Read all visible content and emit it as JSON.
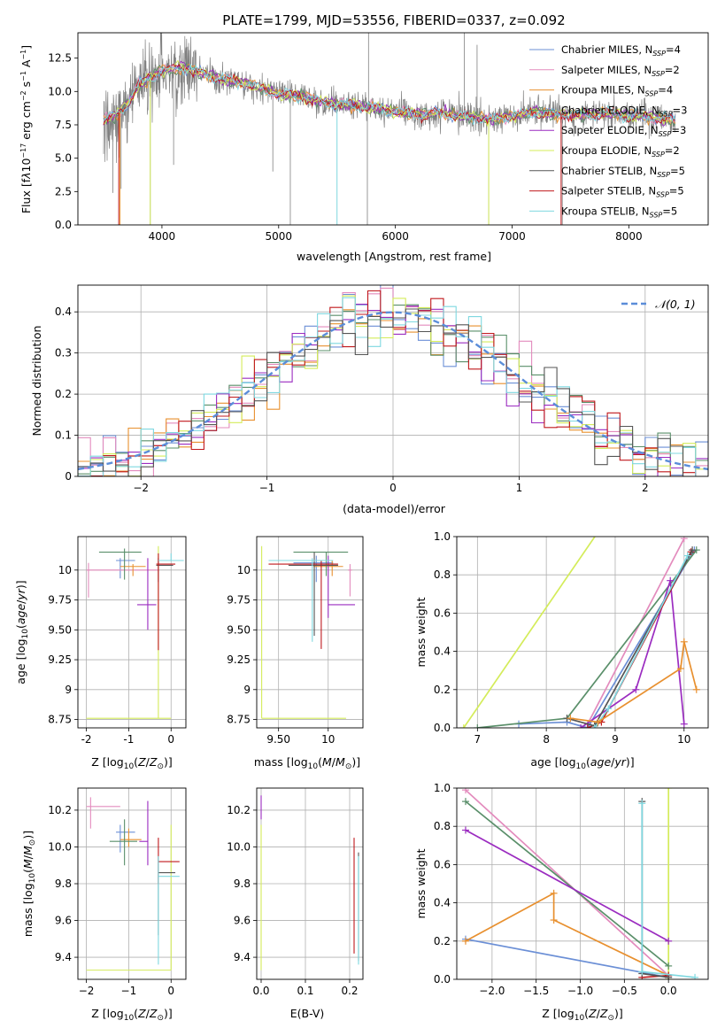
{
  "title": "PLATE=1799, MJD=53556, FIBERID=0337, z=0.092",
  "colors": {
    "chabrier_miles": "#6b8fd6",
    "salpeter_miles": "#e38bbd",
    "kroupa_miles": "#e8902f",
    "chabrier_elodie": "#5a8f6a",
    "salpeter_elodie": "#9b2cc0",
    "kroupa_elodie": "#d4ec5a",
    "chabrier_stelib": "#555555",
    "salpeter_stelib": "#c0181c",
    "kroupa_stelib": "#7fd8e0",
    "data": "#808080",
    "normal": "#5b8dd9"
  },
  "chart_data": [
    {
      "id": "spectrum",
      "type": "line",
      "xlabel": "wavelength [Angstrom, rest frame]",
      "ylabel_html": "Flux [f<tspan font-style='italic'>λ</tspan>10<tspan dy='-5' font-size='8'>−17</tspan><tspan dy='5'> erg cm</tspan><tspan dy='-5' font-size='8'>−2</tspan><tspan dy='5'> s</tspan><tspan dy='-5' font-size='8'>−1</tspan><tspan dy='5'> A</tspan><tspan dy='-5' font-size='8'>−1</tspan><tspan dy='5'>]</tspan>",
      "xlim": [
        3280,
        8680
      ],
      "ylim": [
        0,
        14.4
      ],
      "xticks": [
        4000,
        5000,
        6000,
        7000,
        8000
      ],
      "yticks": [
        0.0,
        2.5,
        5.0,
        7.5,
        10.0,
        12.5
      ],
      "legend": [
        "Chabrier MILES, N_SSP=4",
        "Salpeter MILES, N_SSP=2",
        "Kroupa MILES, N_SSP=4",
        "Chabrier ELODIE, N_SSP=3",
        "Salpeter ELODIE, N_SSP=3",
        "Kroupa ELODIE, N_SSP=2",
        "Chabrier STELIB, N_SSP=5",
        "Salpeter STELIB, N_SSP=5",
        "Kroupa STELIB, N_SSP=5"
      ],
      "legend_placement": "top-right",
      "continuum": [
        [
          3500,
          7.8
        ],
        [
          3600,
          8.2
        ],
        [
          3700,
          9.0
        ],
        [
          3800,
          10.5
        ],
        [
          3900,
          11.0
        ],
        [
          4000,
          11.6
        ],
        [
          4200,
          11.8
        ],
        [
          4400,
          11.2
        ],
        [
          4600,
          10.8
        ],
        [
          4800,
          10.4
        ],
        [
          5000,
          9.8
        ],
        [
          5200,
          9.6
        ],
        [
          5400,
          9.2
        ],
        [
          5600,
          9.0
        ],
        [
          5800,
          8.8
        ],
        [
          6000,
          8.5
        ],
        [
          6200,
          8.3
        ],
        [
          6400,
          8.4
        ],
        [
          6600,
          8.1
        ],
        [
          6800,
          7.9
        ],
        [
          7000,
          8.2
        ],
        [
          7200,
          8.5
        ],
        [
          7400,
          8.3
        ],
        [
          7600,
          8.2
        ],
        [
          7800,
          8.4
        ],
        [
          8000,
          8.2
        ],
        [
          8200,
          8.1
        ],
        [
          8400,
          7.8
        ]
      ]
    },
    {
      "id": "residuals",
      "type": "histogram",
      "xlabel": "(data-model)/error",
      "ylabel": "Normed distribution",
      "xlim": [
        -2.5,
        2.5
      ],
      "ylim": [
        0,
        0.465
      ],
      "xticks": [
        -2,
        -1,
        0,
        1,
        2
      ],
      "yticks": [
        0.0,
        0.1,
        0.2,
        0.3,
        0.4
      ],
      "bin_width": 0.1,
      "legend": [
        "N(0,1)"
      ],
      "legend_placement": "top-right",
      "grid": true
    },
    {
      "id": "age_vs_Z",
      "type": "errorbar",
      "xlabel": "Z [log10(Z/Z_sun)]",
      "ylabel": "age [log10(age/yr)]",
      "xlim": [
        -2.2,
        0.35
      ],
      "ylim": [
        8.68,
        10.28
      ],
      "xticks": [
        -2,
        -1,
        0
      ],
      "yticks": [
        8.75,
        9.0,
        9.25,
        9.5,
        9.75,
        10.0
      ],
      "grid": true,
      "points": [
        {
          "c": "chabrier_miles",
          "x": -1.2,
          "y": 10.08,
          "xe": [
            -1.3,
            -0.85
          ],
          "ye": [
            9.93,
            10.1
          ]
        },
        {
          "c": "salpeter_miles",
          "x": -1.95,
          "y": 10.0,
          "xe": [
            -2.0,
            -0.3
          ],
          "ye": [
            9.77,
            10.06
          ]
        },
        {
          "c": "kroupa_miles",
          "x": -0.9,
          "y": 10.03,
          "xe": [
            -1.2,
            -0.6
          ],
          "ye": [
            9.95,
            10.05
          ]
        },
        {
          "c": "chabrier_elodie",
          "x": -1.1,
          "y": 10.15,
          "xe": [
            -1.7,
            -0.7
          ],
          "ye": [
            9.92,
            10.18
          ]
        },
        {
          "c": "salpeter_elodie",
          "x": -0.55,
          "y": 9.71,
          "xe": [
            -0.8,
            -0.35
          ],
          "ye": [
            9.5,
            10.1
          ]
        },
        {
          "c": "kroupa_elodie",
          "x": -0.3,
          "y": 8.76,
          "xe": [
            -2.0,
            0.0
          ],
          "ye": [
            8.76,
            10.2
          ]
        },
        {
          "c": "chabrier_stelib",
          "x": -0.3,
          "y": 10.04,
          "xe": [
            -0.35,
            0.05
          ],
          "ye": [
            9.9,
            10.1
          ]
        },
        {
          "c": "salpeter_stelib",
          "x": -0.3,
          "y": 10.05,
          "xe": [
            -0.35,
            0.1
          ],
          "ye": [
            9.33,
            10.14
          ]
        },
        {
          "c": "kroupa_stelib",
          "x": 0.0,
          "y": 10.08,
          "xe": [
            -0.3,
            0.3
          ],
          "ye": [
            10.08,
            10.14
          ]
        }
      ]
    },
    {
      "id": "age_vs_mass",
      "type": "errorbar",
      "xlabel": "mass [log10(M/M_sun)]",
      "ylabel": "",
      "xlim": [
        9.28,
        10.35
      ],
      "ylim": [
        8.68,
        10.28
      ],
      "xticks": [
        9.5,
        10.0
      ],
      "yticks": [
        8.75,
        9.0,
        9.25,
        9.5,
        9.75,
        10.0
      ],
      "grid": true,
      "points": [
        {
          "c": "chabrier_miles",
          "x": 9.88,
          "y": 10.06,
          "xe": [
            9.65,
            10.05
          ],
          "ye": [
            9.9,
            10.12
          ]
        },
        {
          "c": "salpeter_miles",
          "x": 10.22,
          "y": 10.0,
          "xe": [
            10.2,
            10.24
          ],
          "ye": [
            9.78,
            10.05
          ]
        },
        {
          "c": "kroupa_miles",
          "x": 10.04,
          "y": 10.03,
          "xe": [
            9.85,
            10.15
          ],
          "ye": [
            9.95,
            10.08
          ]
        },
        {
          "c": "chabrier_elodie",
          "x": 9.98,
          "y": 10.15,
          "xe": [
            9.65,
            10.2
          ],
          "ye": [
            9.95,
            10.15
          ]
        },
        {
          "c": "salpeter_elodie",
          "x": 10.0,
          "y": 9.71,
          "xe": [
            10.0,
            10.27
          ],
          "ye": [
            9.6,
            10.12
          ]
        },
        {
          "c": "kroupa_elodie",
          "x": 9.33,
          "y": 8.76,
          "xe": [
            9.33,
            10.18
          ],
          "ye": [
            8.76,
            10.2
          ]
        },
        {
          "c": "chabrier_stelib",
          "x": 9.86,
          "y": 10.04,
          "xe": [
            9.6,
            10.1
          ],
          "ye": [
            9.45,
            10.15
          ]
        },
        {
          "c": "salpeter_stelib",
          "x": 9.93,
          "y": 10.05,
          "xe": [
            9.4,
            10.1
          ],
          "ye": [
            9.34,
            10.08
          ]
        },
        {
          "c": "kroupa_stelib",
          "x": 9.84,
          "y": 10.08,
          "xe": [
            9.4,
            10.05
          ],
          "ye": [
            9.4,
            10.1
          ]
        }
      ]
    },
    {
      "id": "weight_vs_age",
      "type": "line",
      "xlabel": "age [log10(age/yr)]",
      "ylabel": "mass weight",
      "xlim": [
        6.7,
        10.35
      ],
      "ylim": [
        0,
        1.0
      ],
      "xticks": [
        7,
        8,
        9,
        10
      ],
      "yticks": [
        0.0,
        0.2,
        0.4,
        0.6,
        0.8,
        1.0
      ],
      "grid": true,
      "series": [
        {
          "c": "kroupa_elodie",
          "pts": [
            [
              6.8,
              0.0
            ],
            [
              8.8,
              1.05
            ]
          ]
        },
        {
          "c": "salpeter_miles",
          "pts": [
            [
              8.6,
              0.02
            ],
            [
              10.0,
              0.99
            ]
          ]
        },
        {
          "c": "chabrier_miles",
          "pts": [
            [
              7.6,
              0.02
            ],
            [
              8.3,
              0.03
            ],
            [
              8.6,
              0.0
            ],
            [
              10.15,
              0.93
            ]
          ]
        },
        {
          "c": "chabrier_elodie",
          "pts": [
            [
              7.0,
              0.0
            ],
            [
              8.3,
              0.05
            ],
            [
              10.18,
              0.93
            ]
          ]
        },
        {
          "c": "salpeter_elodie",
          "pts": [
            [
              8.5,
              0.0
            ],
            [
              9.3,
              0.2
            ],
            [
              9.8,
              0.77
            ],
            [
              10.0,
              0.02
            ]
          ]
        },
        {
          "c": "salpeter_stelib",
          "pts": [
            [
              8.6,
              0.0
            ],
            [
              8.8,
              0.03
            ],
            [
              10.1,
              0.92
            ]
          ]
        },
        {
          "c": "chabrier_stelib",
          "pts": [
            [
              8.3,
              0.05
            ],
            [
              8.7,
              0.01
            ],
            [
              10.12,
              0.93
            ]
          ]
        },
        {
          "c": "kroupa_stelib",
          "pts": [
            [
              8.7,
              0.0
            ],
            [
              8.9,
              0.1
            ],
            [
              10.05,
              0.9
            ]
          ]
        },
        {
          "c": "kroupa_miles",
          "pts": [
            [
              8.35,
              0.05
            ],
            [
              8.75,
              0.03
            ],
            [
              9.95,
              0.31
            ],
            [
              10.0,
              0.45
            ],
            [
              10.18,
              0.2
            ]
          ]
        }
      ]
    },
    {
      "id": "mass_vs_Z",
      "type": "errorbar",
      "xlabel": "Z [log10(Z/Z_sun)]",
      "ylabel": "mass [log10(M/M_sun)]",
      "xlim": [
        -2.2,
        0.35
      ],
      "ylim": [
        9.28,
        10.32
      ],
      "xticks": [
        -2,
        -1,
        0
      ],
      "yticks": [
        9.4,
        9.6,
        9.8,
        10.0,
        10.2
      ],
      "grid": true,
      "points": [
        {
          "c": "chabrier_miles",
          "x": -1.2,
          "y": 10.08,
          "xe": [
            -1.3,
            -0.85
          ],
          "ye": [
            9.97,
            10.12
          ]
        },
        {
          "c": "salpeter_miles",
          "x": -1.9,
          "y": 10.22,
          "xe": [
            -2.0,
            -1.2
          ],
          "ye": [
            10.1,
            10.27
          ]
        },
        {
          "c": "kroupa_miles",
          "x": -1.0,
          "y": 10.04,
          "xe": [
            -1.2,
            -0.7
          ],
          "ye": [
            10.0,
            10.1
          ]
        },
        {
          "c": "chabrier_elodie",
          "x": -1.1,
          "y": 10.03,
          "xe": [
            -1.45,
            -0.8
          ],
          "ye": [
            9.9,
            10.15
          ]
        },
        {
          "c": "salpeter_elodie",
          "x": -0.55,
          "y": 10.03,
          "xe": [
            -0.75,
            -0.55
          ],
          "ye": [
            9.9,
            10.25
          ]
        },
        {
          "c": "kroupa_elodie",
          "x": 0.0,
          "y": 9.33,
          "xe": [
            -2.0,
            0.0
          ],
          "ye": [
            9.33,
            10.12
          ]
        },
        {
          "c": "chabrier_stelib",
          "x": -0.3,
          "y": 9.86,
          "xe": [
            -0.3,
            0.1
          ],
          "ye": [
            9.52,
            9.95
          ]
        },
        {
          "c": "salpeter_stelib",
          "x": -0.3,
          "y": 9.92,
          "xe": [
            -0.3,
            0.2
          ],
          "ye": [
            9.8,
            10.05
          ]
        },
        {
          "c": "kroupa_stelib",
          "x": -0.3,
          "y": 9.84,
          "xe": [
            -0.3,
            0.2
          ],
          "ye": [
            9.36,
            9.95
          ]
        }
      ]
    },
    {
      "id": "mass_vs_EBV",
      "type": "errorbar",
      "xlabel": "E(B-V)",
      "ylabel": "",
      "xlim": [
        -0.01,
        0.23
      ],
      "ylim": [
        9.28,
        10.32
      ],
      "xticks": [
        0.0,
        0.1,
        0.2
      ],
      "yticks": [
        9.4,
        9.6,
        9.8,
        10.0,
        10.2
      ],
      "grid": true,
      "points": [
        {
          "c": "salpeter_elodie",
          "x": 0.0,
          "y": 10.2,
          "xe": [
            0.0,
            0.0
          ],
          "ye": [
            10.15,
            10.28
          ]
        },
        {
          "c": "kroupa_elodie",
          "x": 0.0,
          "y": 9.6,
          "xe": [
            0.0,
            0.0
          ],
          "ye": [
            9.33,
            10.12
          ]
        },
        {
          "c": "salpeter_stelib",
          "x": 0.21,
          "y": 9.92,
          "xe": [
            0.21,
            0.21
          ],
          "ye": [
            9.42,
            10.05
          ]
        },
        {
          "c": "chabrier_stelib",
          "x": 0.22,
          "y": 9.86,
          "xe": [
            0.22,
            0.22
          ],
          "ye": [
            9.38,
            9.97
          ]
        },
        {
          "c": "kroupa_stelib",
          "x": 0.22,
          "y": 9.84,
          "xe": [
            0.22,
            0.22
          ],
          "ye": [
            9.36,
            9.95
          ]
        }
      ]
    },
    {
      "id": "weight_vs_Z",
      "type": "line",
      "xlabel": "Z [log10(Z/Z_sun)]",
      "ylabel": "mass weight",
      "xlim": [
        -2.4,
        0.45
      ],
      "ylim": [
        0,
        1.0
      ],
      "xticks": [
        -2.0,
        -1.5,
        -1.0,
        -0.5,
        0.0
      ],
      "yticks": [
        0.0,
        0.2,
        0.4,
        0.6,
        0.8,
        1.0
      ],
      "grid": true,
      "series": [
        {
          "c": "kroupa_elodie",
          "pts": [
            [
              0.0,
              0.0
            ],
            [
              0.0,
              1.0
            ]
          ]
        },
        {
          "c": "salpeter_miles",
          "pts": [
            [
              -2.3,
              0.99
            ],
            [
              0.0,
              0.02
            ]
          ]
        },
        {
          "c": "chabrier_elodie",
          "pts": [
            [
              -2.3,
              0.93
            ],
            [
              0.0,
              0.07
            ]
          ]
        },
        {
          "c": "salpeter_elodie",
          "pts": [
            [
              -2.3,
              0.78
            ],
            [
              0.0,
              0.2
            ]
          ]
        },
        {
          "c": "chabrier_miles",
          "pts": [
            [
              -2.3,
              0.21
            ],
            [
              0.0,
              0.01
            ]
          ]
        },
        {
          "c": "kroupa_miles",
          "pts": [
            [
              -2.3,
              0.2
            ],
            [
              -1.3,
              0.45
            ],
            [
              -1.3,
              0.31
            ],
            [
              0.0,
              0.02
            ]
          ]
        },
        {
          "c": "salpeter_stelib",
          "pts": [
            [
              -0.3,
              0.01
            ],
            [
              0.0,
              0.02
            ]
          ]
        },
        {
          "c": "chabrier_stelib",
          "pts": [
            [
              -0.3,
              0.93
            ],
            [
              -0.3,
              0.03
            ],
            [
              0.0,
              0.01
            ]
          ]
        },
        {
          "c": "kroupa_stelib",
          "pts": [
            [
              -0.3,
              0.92
            ],
            [
              -0.3,
              0.04
            ],
            [
              0.3,
              0.01
            ]
          ]
        }
      ]
    }
  ],
  "legend_labels": [
    {
      "key": "chabrier_miles",
      "text": "Chabrier MILES, N",
      "sub": "SSP",
      "tail": "=4"
    },
    {
      "key": "salpeter_miles",
      "text": "Salpeter MILES, N",
      "sub": "SSP",
      "tail": "=2"
    },
    {
      "key": "kroupa_miles",
      "text": "Kroupa MILES, N",
      "sub": "SSP",
      "tail": "=4"
    },
    {
      "key": "chabrier_elodie",
      "text": "Chabrier ELODIE, N",
      "sub": "SSP",
      "tail": "=3"
    },
    {
      "key": "salpeter_elodie",
      "text": "Salpeter ELODIE, N",
      "sub": "SSP",
      "tail": "=3"
    },
    {
      "key": "kroupa_elodie",
      "text": "Kroupa ELODIE, N",
      "sub": "SSP",
      "tail": "=2"
    },
    {
      "key": "chabrier_stelib",
      "text": "Chabrier STELIB, N",
      "sub": "SSP",
      "tail": "=5"
    },
    {
      "key": "salpeter_stelib",
      "text": "Salpeter STELIB, N",
      "sub": "SSP",
      "tail": "=5"
    },
    {
      "key": "kroupa_stelib",
      "text": "Kroupa STELIB, N",
      "sub": "SSP",
      "tail": "=5"
    }
  ],
  "normal_legend": "𝒩(0, 1)"
}
